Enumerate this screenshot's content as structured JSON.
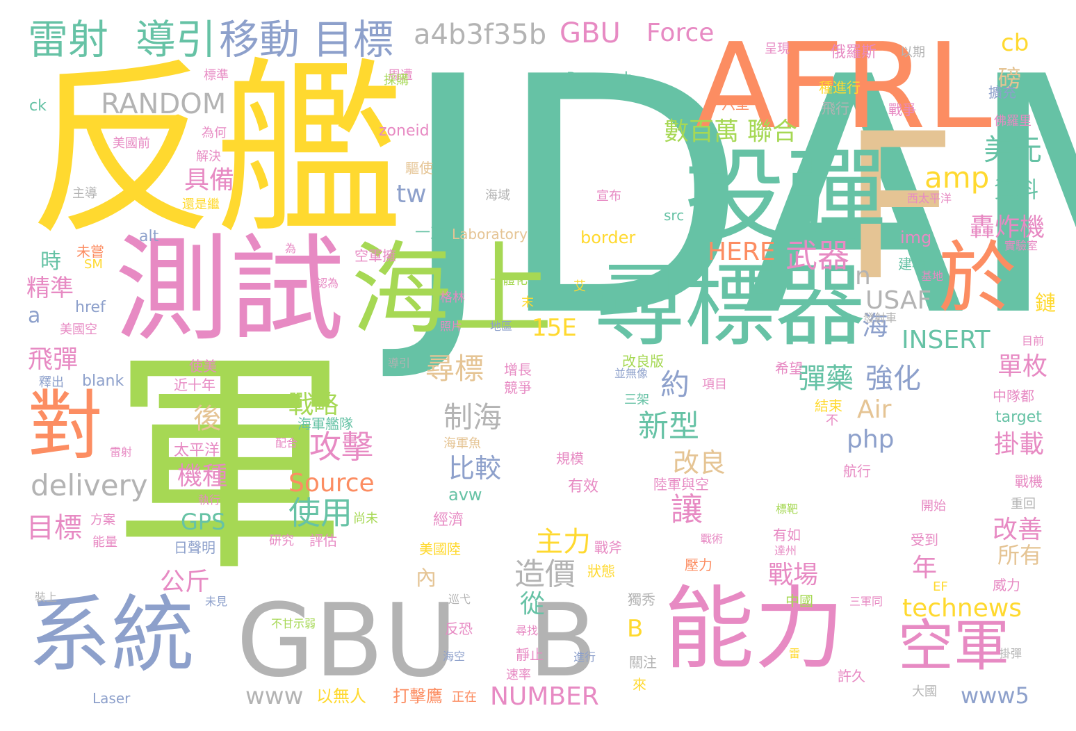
{
  "palette": {
    "teal": "#66c2a5",
    "orange": "#fc8d62",
    "blue": "#8da0cb",
    "pink": "#e78ac3",
    "green": "#a6d854",
    "yellow": "#ffd92f",
    "tan": "#e5c494",
    "gray": "#b3b3b3"
  },
  "words": [
    {
      "text": "JDAM",
      "color": "teal"
    },
    {
      "text": "軍",
      "color": "green"
    },
    {
      "text": "反艦",
      "color": "yellow"
    },
    {
      "text": "AFRL",
      "color": "orange"
    },
    {
      "text": "F",
      "color": "tan"
    },
    {
      "text": "測試",
      "color": "pink"
    },
    {
      "text": "投彈",
      "color": "teal"
    },
    {
      "text": "海上",
      "color": "green"
    },
    {
      "text": "尋標器",
      "color": "teal"
    },
    {
      "text": "於",
      "color": "orange"
    },
    {
      "text": "GBU",
      "color": "gray"
    },
    {
      "text": "B",
      "color": "gray"
    },
    {
      "text": "系統",
      "color": "blue"
    },
    {
      "text": "能力",
      "color": "pink"
    },
    {
      "text": "對",
      "color": "orange"
    },
    {
      "text": "空軍",
      "color": "pink"
    },
    {
      "text": "雷射",
      "color": "teal"
    },
    {
      "text": "導引",
      "color": "teal"
    },
    {
      "text": "移動",
      "color": "blue"
    },
    {
      "text": "目標",
      "color": "blue"
    },
    {
      "text": "a4b3f35b",
      "color": "gray"
    },
    {
      "text": "GBU",
      "color": "pink"
    },
    {
      "text": "Force",
      "color": "pink"
    },
    {
      "text": "cb",
      "color": "yellow"
    },
    {
      "text": "RANDOM",
      "color": "gray"
    },
    {
      "text": "美元",
      "color": "teal"
    },
    {
      "text": "數百萬",
      "color": "green"
    },
    {
      "text": "聯合",
      "color": "green"
    },
    {
      "text": "amp",
      "color": "yellow"
    },
    {
      "text": "具備",
      "color": "pink"
    },
    {
      "text": "資料",
      "color": "teal"
    },
    {
      "text": "磅",
      "color": "tan"
    },
    {
      "text": "tw",
      "color": "blue"
    },
    {
      "text": "轟炸機",
      "color": "pink"
    },
    {
      "text": "武器",
      "color": "pink"
    },
    {
      "text": "HERE",
      "color": "orange"
    },
    {
      "text": "n",
      "color": "gray"
    },
    {
      "text": "USAF",
      "color": "gray"
    },
    {
      "text": "時",
      "color": "teal"
    },
    {
      "text": "精準",
      "color": "pink"
    },
    {
      "text": "a",
      "color": "blue"
    },
    {
      "text": "15E",
      "color": "yellow"
    },
    {
      "text": "海",
      "color": "blue"
    },
    {
      "text": "INSERT",
      "color": "teal"
    },
    {
      "text": "飛彈",
      "color": "pink"
    },
    {
      "text": "尋標",
      "color": "tan"
    },
    {
      "text": "約",
      "color": "blue"
    },
    {
      "text": "彈藥",
      "color": "teal"
    },
    {
      "text": "強化",
      "color": "blue"
    },
    {
      "text": "單枚",
      "color": "pink"
    },
    {
      "text": "鏈",
      "color": "yellow"
    },
    {
      "text": "戰略",
      "color": "green"
    },
    {
      "text": "後",
      "color": "tan"
    },
    {
      "text": "制海",
      "color": "gray"
    },
    {
      "text": "新型",
      "color": "teal"
    },
    {
      "text": "Air",
      "color": "tan"
    },
    {
      "text": "攻擊",
      "color": "pink"
    },
    {
      "text": "php",
      "color": "blue"
    },
    {
      "text": "掛載",
      "color": "pink"
    },
    {
      "text": "delivery",
      "color": "gray"
    },
    {
      "text": "比較",
      "color": "blue"
    },
    {
      "text": "改良",
      "color": "tan"
    },
    {
      "text": "機種",
      "color": "pink"
    },
    {
      "text": "Source",
      "color": "orange"
    },
    {
      "text": "使用",
      "color": "teal"
    },
    {
      "text": "讓",
      "color": "pink"
    },
    {
      "text": "GPS",
      "color": "teal"
    },
    {
      "text": "avw",
      "color": "teal"
    },
    {
      "text": "目標",
      "color": "pink"
    },
    {
      "text": "主力",
      "color": "yellow"
    },
    {
      "text": "改善",
      "color": "pink"
    },
    {
      "text": "所有",
      "color": "tan"
    },
    {
      "text": "造價",
      "color": "gray"
    },
    {
      "text": "公斤",
      "color": "pink"
    },
    {
      "text": "內",
      "color": "tan"
    },
    {
      "text": "戰場",
      "color": "pink"
    },
    {
      "text": "年",
      "color": "pink"
    },
    {
      "text": "從",
      "color": "teal"
    },
    {
      "text": "technews",
      "color": "yellow"
    },
    {
      "text": "B",
      "color": "yellow"
    },
    {
      "text": "www",
      "color": "gray"
    },
    {
      "text": "NUMBER",
      "color": "pink"
    },
    {
      "text": "www5",
      "color": "blue"
    },
    {
      "text": "以無人",
      "color": "yellow"
    },
    {
      "text": "打擊鷹",
      "color": "orange"
    },
    {
      "text": "Research",
      "color": "teal"
    },
    {
      "text": "Laboratory",
      "color": "tan"
    },
    {
      "text": "border",
      "color": "yellow"
    },
    {
      "text": "img",
      "color": "pink"
    },
    {
      "text": "src",
      "color": "teal"
    },
    {
      "text": "zoneid",
      "color": "pink"
    },
    {
      "text": "alt",
      "color": "blue"
    },
    {
      "text": "ck",
      "color": "teal"
    },
    {
      "text": "href",
      "color": "blue"
    },
    {
      "text": "blank",
      "color": "blue"
    },
    {
      "text": "target",
      "color": "teal"
    },
    {
      "text": "Laser",
      "color": "blue"
    },
    {
      "text": "SM",
      "color": "yellow"
    },
    {
      "text": "EF",
      "color": "yellow"
    },
    {
      "text": "周遭",
      "color": "pink"
    },
    {
      "text": "呈現",
      "color": "pink"
    },
    {
      "text": "俄羅斯",
      "color": "pink"
    },
    {
      "text": "以期",
      "color": "gray"
    },
    {
      "text": "採購",
      "color": "green"
    },
    {
      "text": "標準",
      "color": "pink"
    },
    {
      "text": "種進行",
      "color": "yellow"
    },
    {
      "text": "擴充",
      "color": "blue"
    },
    {
      "text": "六型",
      "color": "orange"
    },
    {
      "text": "飛行",
      "color": "gray"
    },
    {
      "text": "戰爭",
      "color": "pink"
    },
    {
      "text": "佛羅里",
      "color": "pink"
    },
    {
      "text": "為何",
      "color": "pink"
    },
    {
      "text": "美國前",
      "color": "pink"
    },
    {
      "text": "解決",
      "color": "pink"
    },
    {
      "text": "驅使",
      "color": "tan"
    },
    {
      "text": "主導",
      "color": "gray"
    },
    {
      "text": "還是繼",
      "color": "yellow"
    },
    {
      "text": "海域",
      "color": "gray"
    },
    {
      "text": "宣布",
      "color": "pink"
    },
    {
      "text": "西太平洋",
      "color": "pink"
    },
    {
      "text": "一支",
      "color": "teal"
    },
    {
      "text": "實驗室",
      "color": "pink"
    },
    {
      "text": "未嘗",
      "color": "orange"
    },
    {
      "text": "為",
      "color": "pink"
    },
    {
      "text": "空軍擁",
      "color": "pink"
    },
    {
      "text": "建構",
      "color": "teal"
    },
    {
      "text": "基地",
      "color": "pink"
    },
    {
      "text": "認為",
      "color": "pink"
    },
    {
      "text": "一體化",
      "color": "green"
    },
    {
      "text": "艾",
      "color": "yellow"
    },
    {
      "text": "格林",
      "color": "pink"
    },
    {
      "text": "末",
      "color": "yellow"
    },
    {
      "text": "美國空",
      "color": "pink"
    },
    {
      "text": "照片",
      "color": "pink"
    },
    {
      "text": "地區",
      "color": "blue"
    },
    {
      "text": "發射車",
      "color": "gray"
    },
    {
      "text": "目前",
      "color": "pink"
    },
    {
      "text": "導引",
      "color": "gray"
    },
    {
      "text": "增長",
      "color": "pink"
    },
    {
      "text": "改良版",
      "color": "green"
    },
    {
      "text": "希望",
      "color": "pink"
    },
    {
      "text": "使美",
      "color": "pink"
    },
    {
      "text": "近十年",
      "color": "pink"
    },
    {
      "text": "競爭",
      "color": "pink"
    },
    {
      "text": "並無像",
      "color": "blue"
    },
    {
      "text": "項目",
      "color": "pink"
    },
    {
      "text": "釋出",
      "color": "blue"
    },
    {
      "text": "三架",
      "color": "teal"
    },
    {
      "text": "結束",
      "color": "yellow"
    },
    {
      "text": "中隊都",
      "color": "pink"
    },
    {
      "text": "海軍艦隊",
      "color": "teal"
    },
    {
      "text": "不",
      "color": "pink"
    },
    {
      "text": "太平洋",
      "color": "pink"
    },
    {
      "text": "配合",
      "color": "pink"
    },
    {
      "text": "海軍魚",
      "color": "tan"
    },
    {
      "text": "雷射",
      "color": "pink"
    },
    {
      "text": "規模",
      "color": "pink"
    },
    {
      "text": "航行",
      "color": "pink"
    },
    {
      "text": "執行",
      "color": "pink"
    },
    {
      "text": "有效",
      "color": "pink"
    },
    {
      "text": "陸軍與空",
      "color": "pink"
    },
    {
      "text": "戰機",
      "color": "pink"
    },
    {
      "text": "方案",
      "color": "pink"
    },
    {
      "text": "尚未",
      "color": "green"
    },
    {
      "text": "經濟",
      "color": "pink"
    },
    {
      "text": "標靶",
      "color": "green"
    },
    {
      "text": "開始",
      "color": "pink"
    },
    {
      "text": "重回",
      "color": "gray"
    },
    {
      "text": "能量",
      "color": "pink"
    },
    {
      "text": "研究",
      "color": "pink"
    },
    {
      "text": "評估",
      "color": "pink"
    },
    {
      "text": "有如",
      "color": "pink"
    },
    {
      "text": "受到",
      "color": "pink"
    },
    {
      "text": "日聲明",
      "color": "blue"
    },
    {
      "text": "美國陸",
      "color": "yellow"
    },
    {
      "text": "戰斧",
      "color": "pink"
    },
    {
      "text": "戰術",
      "color": "pink"
    },
    {
      "text": "達州",
      "color": "pink"
    },
    {
      "text": "狀態",
      "color": "yellow"
    },
    {
      "text": "壓力",
      "color": "orange"
    },
    {
      "text": "威力",
      "color": "pink"
    },
    {
      "text": "裝上",
      "color": "gray"
    },
    {
      "text": "未見",
      "color": "blue"
    },
    {
      "text": "巡弋",
      "color": "gray"
    },
    {
      "text": "獨秀",
      "color": "gray"
    },
    {
      "text": "中國",
      "color": "green"
    },
    {
      "text": "三軍同",
      "color": "pink"
    },
    {
      "text": "不甘示弱",
      "color": "green"
    },
    {
      "text": "反恐",
      "color": "pink"
    },
    {
      "text": "尋找",
      "color": "pink"
    },
    {
      "text": "海空",
      "color": "blue"
    },
    {
      "text": "靜止",
      "color": "pink"
    },
    {
      "text": "進行",
      "color": "blue"
    },
    {
      "text": "雷",
      "color": "yellow"
    },
    {
      "text": "掛彈",
      "color": "gray"
    },
    {
      "text": "關注",
      "color": "gray"
    },
    {
      "text": "速率",
      "color": "pink"
    },
    {
      "text": "許久",
      "color": "pink"
    },
    {
      "text": "來",
      "color": "yellow"
    },
    {
      "text": "正在",
      "color": "orange"
    },
    {
      "text": "大國",
      "color": "gray"
    }
  ]
}
